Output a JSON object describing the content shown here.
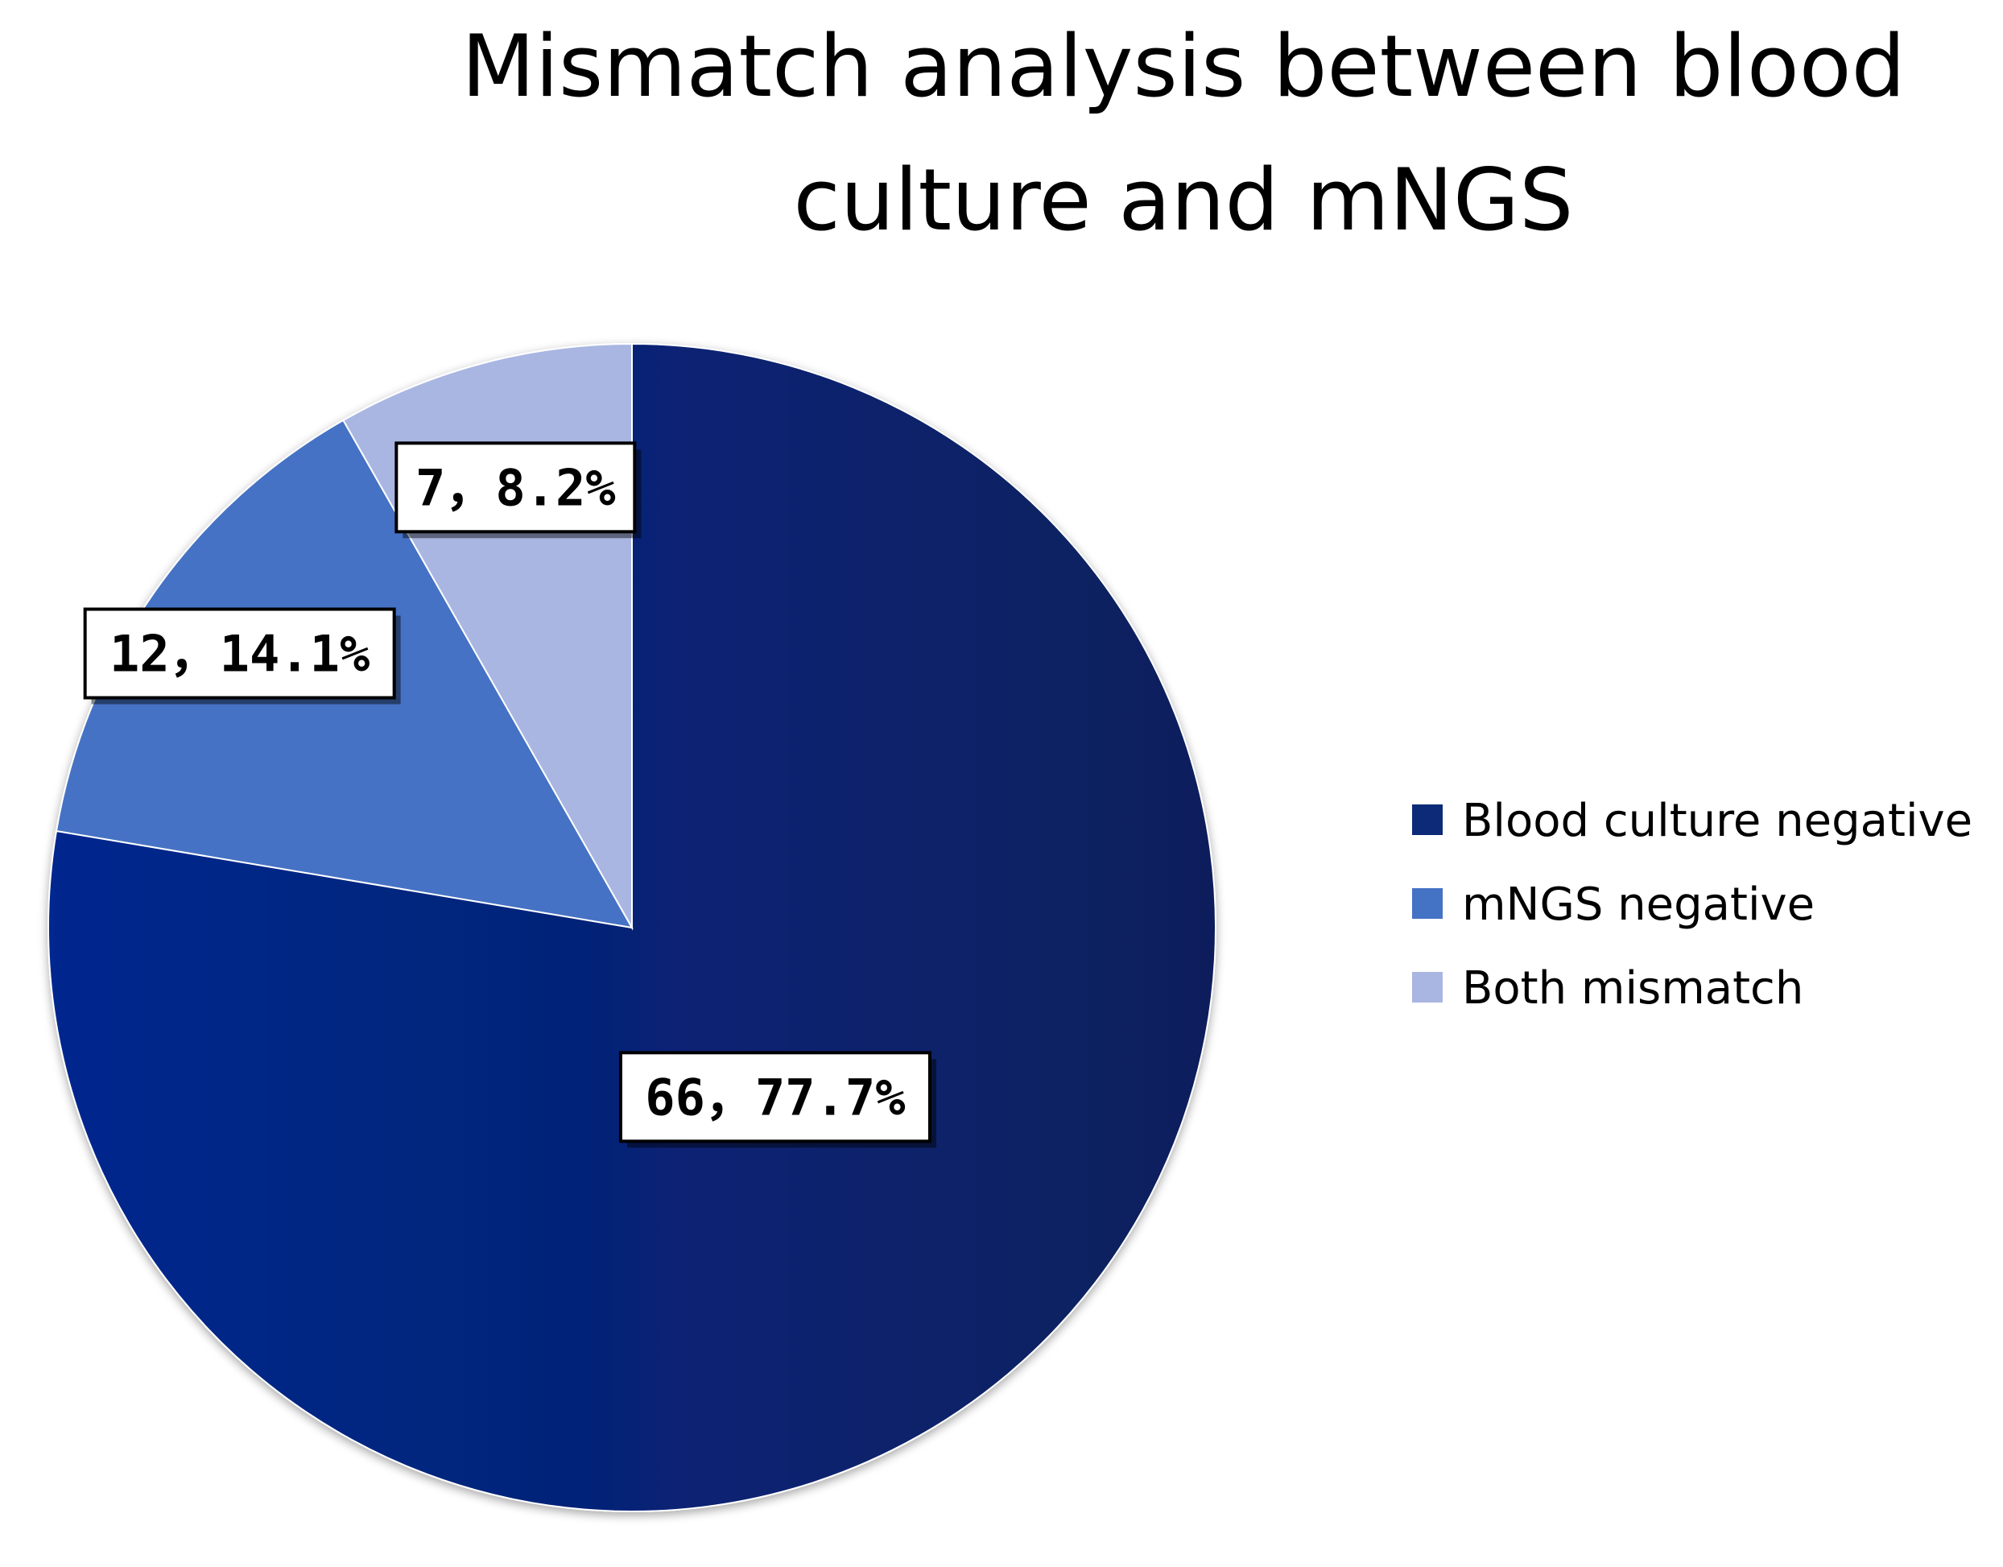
{
  "chart_data": {
    "type": "pie",
    "title": "Mismatch analysis between blood culture and mNGS",
    "categories": [
      "Blood culture negative",
      "mNGS negative",
      "Both mismatch"
    ],
    "values": [
      66,
      12,
      7
    ],
    "percent_labels": [
      "77.7%",
      "14.1%",
      "8.2%"
    ],
    "data_labels": [
      "66，77.7%",
      "12，14.1%",
      "7，8.2%"
    ],
    "colors": [
      "#0c2a78",
      "#4472c4",
      "#a9b6e2"
    ],
    "start_angle_deg": 0,
    "direction": "clockwise",
    "legend_position": "right"
  }
}
